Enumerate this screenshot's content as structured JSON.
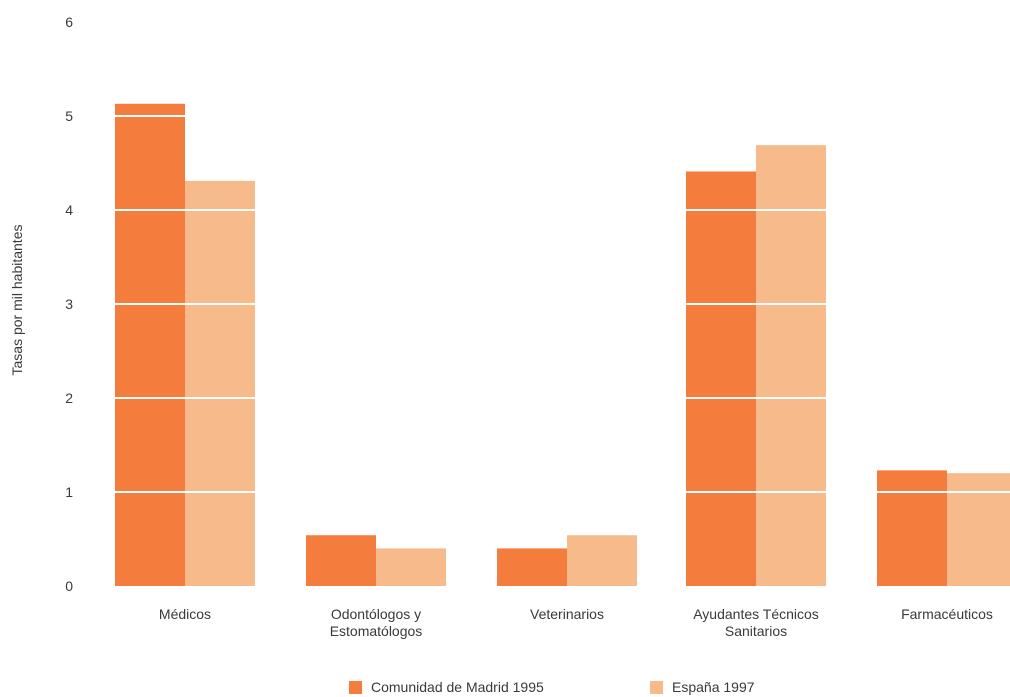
{
  "chart_data": {
    "type": "bar",
    "ylabel": "Tasas por mil habitantes",
    "ylim": [
      0,
      6
    ],
    "yticks": [
      "0",
      "1",
      "2",
      "3",
      "4",
      "5",
      "6"
    ],
    "grid": "white lines across bars",
    "categories": [
      [
        "Médicos"
      ],
      [
        "Odontólogos y",
        "Estomatólogos"
      ],
      [
        "Veterinarios"
      ],
      [
        "Ayudantes Técnicos",
        "Sanitarios"
      ],
      [
        "Farmacéuticos"
      ]
    ],
    "series": [
      {
        "name": "Comunidad de Madrid 1995",
        "color": "#f47c3c",
        "values": [
          5.13,
          0.54,
          0.4,
          4.41,
          1.23
        ]
      },
      {
        "name": "España 1997",
        "color": "#f7bb8b",
        "values": [
          4.31,
          0.4,
          0.54,
          4.69,
          1.2
        ]
      }
    ],
    "legend_position": "bottom"
  }
}
